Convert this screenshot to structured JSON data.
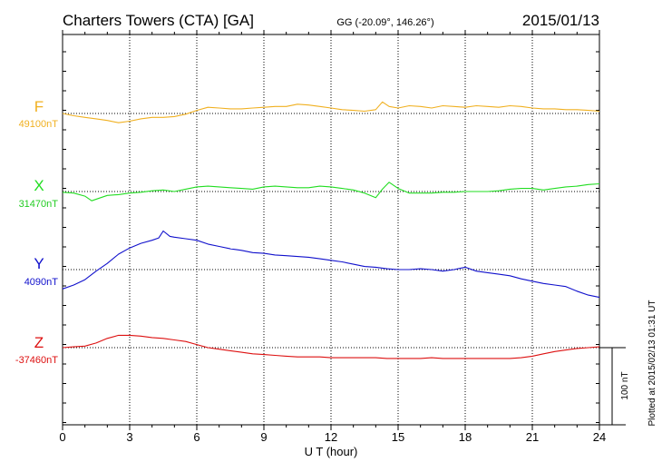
{
  "header": {
    "station": "Charters Towers (CTA)  [GA]",
    "coords": "GG (-20.09°, 146.26°)",
    "date": "2015/01/13"
  },
  "footer": {
    "plotted": "Plotted at 2015/02/13 01:31  UT"
  },
  "colors": {
    "F": "#f0b020",
    "X": "#22dd22",
    "Y": "#1010cc",
    "Z": "#dd1010",
    "axis": "#000000"
  },
  "chart_data": {
    "type": "line",
    "xlabel": "U T (hour)",
    "xlim": [
      0,
      24
    ],
    "xticks": [
      0,
      3,
      6,
      9,
      12,
      15,
      18,
      21,
      24
    ],
    "scale_bar": {
      "label": "100 nT",
      "value": 100
    },
    "series": [
      {
        "name": "F",
        "baseline": "49100nT",
        "baseline_nT": 49100,
        "x": [
          0,
          0.5,
          1,
          1.5,
          2,
          2.5,
          3,
          3.5,
          4,
          4.5,
          5,
          5.5,
          6,
          6.5,
          7,
          7.5,
          8,
          8.5,
          9,
          9.5,
          10,
          10.5,
          11,
          11.5,
          12,
          12.5,
          13,
          13.5,
          14,
          14.3,
          14.6,
          15,
          15.5,
          16,
          16.5,
          17,
          17.5,
          18,
          18.5,
          19,
          19.5,
          20,
          20.5,
          21,
          21.5,
          22,
          22.5,
          23,
          23.5,
          24
        ],
        "delta": [
          0,
          -3,
          -5,
          -7,
          -9,
          -12,
          -10,
          -7,
          -5,
          -5,
          -4,
          -1,
          4,
          8,
          7,
          6,
          6,
          7,
          8,
          9,
          9,
          12,
          11,
          9,
          7,
          5,
          4,
          3,
          5,
          15,
          9,
          7,
          10,
          9,
          7,
          10,
          9,
          8,
          10,
          9,
          8,
          10,
          9,
          7,
          6,
          6,
          5,
          5,
          4,
          3
        ]
      },
      {
        "name": "X",
        "baseline": "31470nT",
        "baseline_nT": 31470,
        "x": [
          0,
          0.5,
          1,
          1.3,
          1.7,
          2,
          2.5,
          3,
          3.5,
          4,
          4.5,
          5,
          5.5,
          6,
          6.5,
          7,
          7.5,
          8,
          8.5,
          9,
          9.5,
          10,
          10.5,
          11,
          11.5,
          12,
          12.5,
          13,
          13.5,
          14,
          14.3,
          14.6,
          15,
          15.5,
          16,
          16.5,
          17,
          17.5,
          18,
          18.5,
          19,
          19.5,
          20,
          20.5,
          21,
          21.5,
          22,
          22.5,
          23,
          23.5,
          24
        ],
        "delta": [
          -1,
          -2,
          -6,
          -12,
          -8,
          -5,
          -4,
          -2,
          -1,
          1,
          2,
          0,
          3,
          6,
          7,
          6,
          5,
          4,
          3,
          6,
          7,
          6,
          5,
          5,
          7,
          6,
          4,
          2,
          -2,
          -8,
          3,
          12,
          4,
          -2,
          -2,
          -2,
          -1,
          -1,
          0,
          0,
          0,
          1,
          3,
          4,
          4,
          2,
          4,
          6,
          7,
          9,
          10
        ]
      },
      {
        "name": "Y",
        "baseline": "4090nT",
        "baseline_nT": 4090,
        "x": [
          0,
          0.5,
          1,
          1.5,
          2,
          2.5,
          3,
          3.5,
          4,
          4.3,
          4.5,
          4.8,
          5,
          5.5,
          6,
          6.5,
          7,
          7.5,
          8,
          8.5,
          9,
          9.5,
          10,
          10.5,
          11,
          11.5,
          12,
          12.5,
          13,
          13.5,
          14,
          14.5,
          15,
          15.5,
          16,
          16.5,
          17,
          17.5,
          18,
          18.5,
          19,
          19.5,
          20,
          20.5,
          21,
          21.5,
          22,
          22.5,
          23,
          23.5,
          24
        ],
        "delta": [
          -25,
          -20,
          -13,
          -2,
          8,
          20,
          28,
          34,
          38,
          41,
          50,
          43,
          42,
          40,
          38,
          33,
          30,
          27,
          25,
          22,
          21,
          19,
          18,
          17,
          16,
          14,
          12,
          10,
          7,
          4,
          3,
          1,
          0,
          0,
          1,
          0,
          -2,
          0,
          3,
          -2,
          -4,
          -6,
          -8,
          -12,
          -15,
          -18,
          -20,
          -22,
          -28,
          -33,
          -36
        ]
      },
      {
        "name": "Z",
        "baseline": "-37460nT",
        "baseline_nT": -37460,
        "x": [
          0,
          0.5,
          1,
          1.5,
          2,
          2.5,
          3,
          3.5,
          4,
          4.5,
          5,
          5.5,
          6,
          6.5,
          7,
          7.5,
          8,
          8.5,
          9,
          9.5,
          10,
          10.5,
          11,
          11.5,
          12,
          12.5,
          13,
          13.5,
          14,
          14.5,
          15,
          15.5,
          16,
          16.5,
          17,
          17.5,
          18,
          18.5,
          19,
          19.5,
          20,
          20.5,
          21,
          21.5,
          22,
          22.5,
          23,
          23.5,
          24
        ],
        "delta": [
          0,
          1,
          2,
          6,
          12,
          16,
          16,
          15,
          13,
          12,
          10,
          8,
          4,
          0,
          -2,
          -4,
          -6,
          -8,
          -9,
          -10,
          -11,
          -12,
          -12,
          -12,
          -13,
          -13,
          -13,
          -13,
          -13,
          -14,
          -14,
          -14,
          -14,
          -13,
          -14,
          -14,
          -14,
          -14,
          -14,
          -14,
          -14,
          -13,
          -11,
          -8,
          -5,
          -3,
          -1,
          0,
          1
        ]
      }
    ]
  }
}
